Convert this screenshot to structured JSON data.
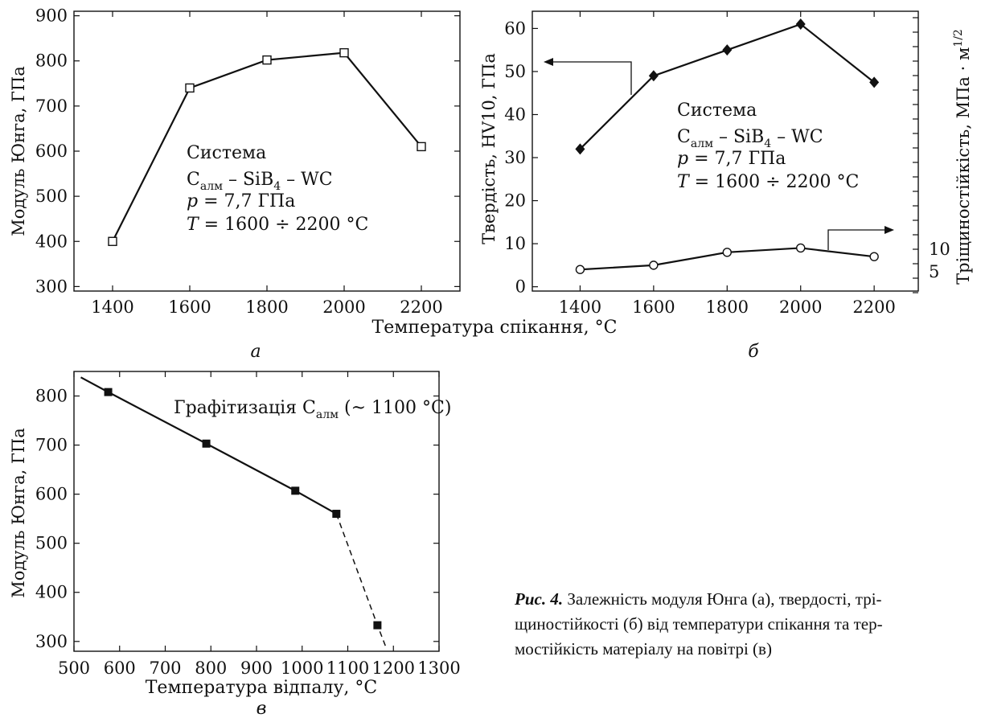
{
  "chart_data": [
    {
      "id": "a",
      "type": "line",
      "panel_label": "а",
      "x": [
        1400,
        1600,
        1800,
        2000,
        2200
      ],
      "series": [
        {
          "values": [
            400,
            740,
            802,
            818,
            610
          ],
          "marker": "open-square"
        }
      ],
      "xlim": [
        1300,
        2300
      ],
      "ylim": [
        290,
        910
      ],
      "xticks": [
        1400,
        1600,
        1800,
        2000,
        2200
      ],
      "yticks": [
        300,
        400,
        500,
        600,
        700,
        800,
        900
      ],
      "ylabel": "Модуль Юнга, ГПа",
      "annotation": {
        "title": "Система",
        "system": {
          "c": "C",
          "c_sub": "алм",
          "mid": " – SiB",
          "b_sub": "4",
          "tail": " – WC"
        },
        "pressure": {
          "sym": "p",
          "rest": " = 7,7 ГПа"
        },
        "temperature": {
          "sym": "T",
          "rest": " = 1600 ÷ 2200 °C"
        }
      }
    },
    {
      "id": "b",
      "type": "line",
      "panel_label": "б",
      "x": [
        1400,
        1600,
        1800,
        2000,
        2200
      ],
      "series": [
        {
          "values": [
            32,
            49,
            55,
            61,
            47.5
          ],
          "marker": "filled-diamond",
          "axis": "left"
        },
        {
          "values": [
            4,
            5,
            8,
            9,
            7
          ],
          "marker": "open-circle",
          "axis": "left-scale"
        }
      ],
      "xlim": [
        1270,
        2320
      ],
      "ylim": [
        -1,
        64
      ],
      "xticks": [
        1400,
        1600,
        1800,
        2000,
        2200
      ],
      "yticks": [
        0,
        10,
        20,
        30,
        40,
        50,
        60
      ],
      "right_ticks": [
        "10",
        "5"
      ],
      "ylabel": "Твердість, HV10, ГПа",
      "ylabel_right": {
        "text": "Тріщиностійкість, МПа · м",
        "sup": "1/2"
      },
      "annotation": {
        "title": "Система",
        "system": {
          "c": "C",
          "c_sub": "алм",
          "mid": " – SiB",
          "b_sub": "4",
          "tail": " – WC"
        },
        "pressure": {
          "sym": "p",
          "rest": " = 7,7 ГПа"
        },
        "temperature": {
          "sym": "T",
          "rest": " = 1600 ÷ 2200 °C"
        }
      }
    },
    {
      "id": "c",
      "type": "line",
      "panel_label": "в",
      "x": [
        575,
        790,
        985,
        1075,
        1165
      ],
      "series": [
        {
          "values": [
            808,
            703,
            607,
            560,
            333
          ],
          "marker": "filled-square"
        }
      ],
      "trend_start": {
        "x": 515,
        "y": 838
      },
      "dashed_end": {
        "x": 1185,
        "y": 285
      },
      "xlim": [
        500,
        1300
      ],
      "ylim": [
        280,
        850
      ],
      "xticks": [
        500,
        600,
        700,
        800,
        900,
        1000,
        1100,
        1200,
        1300
      ],
      "yticks": [
        300,
        400,
        500,
        600,
        700,
        800
      ],
      "xlabel": "Температура відпалу, °C",
      "ylabel": "Модуль Юнга, ГПа",
      "annotation": {
        "pre": "Графітизація C",
        "sub": "алм",
        "post": " (~ 1100 °C)"
      }
    }
  ],
  "shared_xlabel": "Температура спікання, °C",
  "caption": {
    "label": "Рис. 4.",
    "lines": [
      " Залежність модуля Юнга (а), твердості, трі-",
      "щиностійкості (б) від температури спікання та тер-",
      "мостійкість матеріалу на повітрі (в)"
    ]
  }
}
